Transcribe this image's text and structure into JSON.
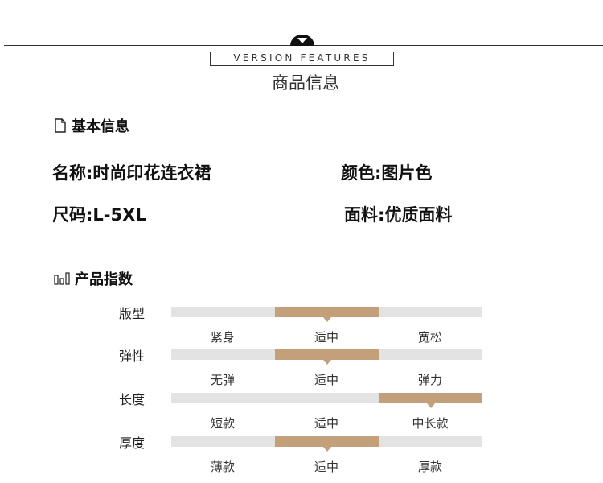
{
  "header": {
    "subtitle_en": "VERSION FEATURES",
    "title": "商品信息"
  },
  "basic": {
    "heading": "基本信息",
    "icon": "document-icon",
    "name": "名称:时尚印花连衣裙",
    "color": "颜色:图片色",
    "size": "尺码:L-5XL",
    "fabric": "面料:优质面料"
  },
  "index": {
    "heading": "产品指数",
    "icon": "bar-chart-icon",
    "accent": "#c4a07a",
    "track": "#e3e3e3",
    "rows": [
      {
        "label": "版型",
        "options": [
          "紧身",
          "适中",
          "宽松"
        ],
        "selected": 1
      },
      {
        "label": "弹性",
        "options": [
          "无弹",
          "适中",
          "弹力"
        ],
        "selected": 1
      },
      {
        "label": "长度",
        "options": [
          "短款",
          "适中",
          "中长款"
        ],
        "selected": 2
      },
      {
        "label": "厚度",
        "options": [
          "薄款",
          "适中",
          "厚款"
        ],
        "selected": 1
      }
    ]
  }
}
